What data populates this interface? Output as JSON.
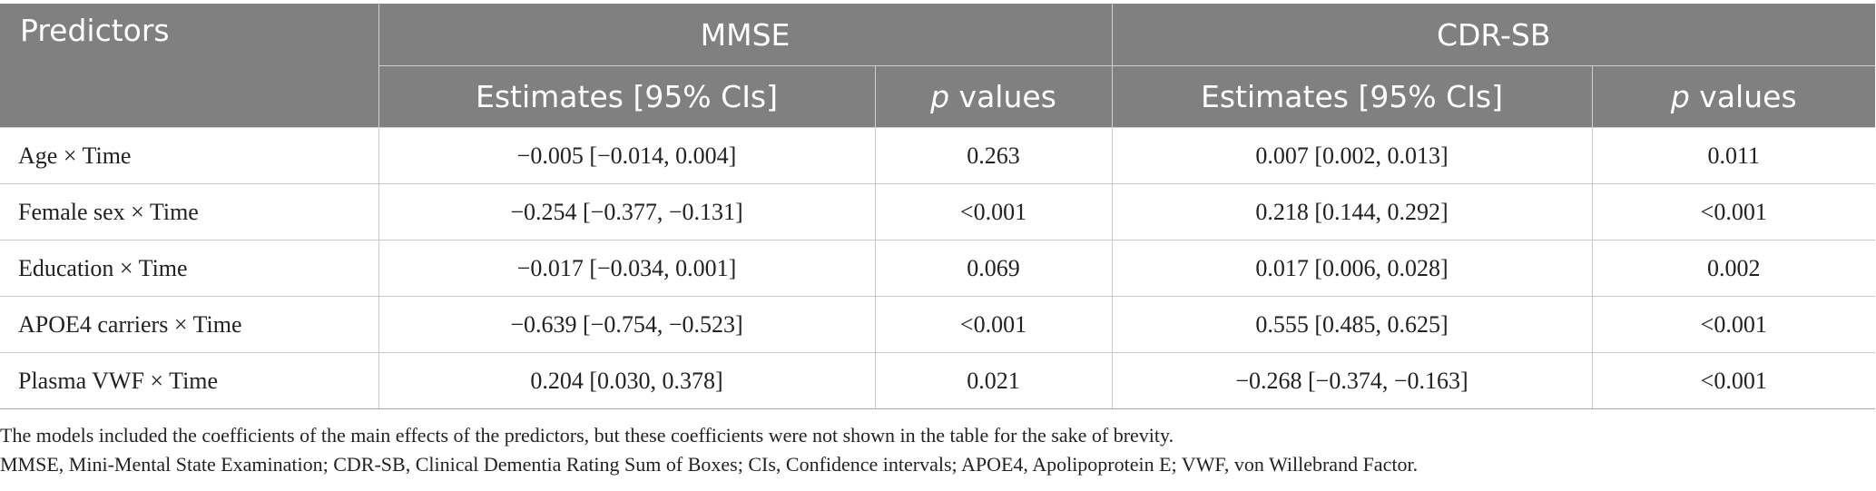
{
  "header": {
    "predictors": "Predictors",
    "group1": "MMSE",
    "group2": "CDR-SB",
    "estimates": "Estimates [95% CIs]",
    "p_italic": "p",
    "p_rest": " values"
  },
  "rows": [
    {
      "predictor": "Age × Time",
      "mmse_est": "−0.005 [−0.014, 0.004]",
      "mmse_p": "0.263",
      "cdr_est": "0.007 [0.002, 0.013]",
      "cdr_p": "0.011"
    },
    {
      "predictor": "Female sex × Time",
      "mmse_est": "−0.254 [−0.377, −0.131]",
      "mmse_p": "<0.001",
      "cdr_est": "0.218 [0.144, 0.292]",
      "cdr_p": "<0.001"
    },
    {
      "predictor": "Education × Time",
      "mmse_est": "−0.017 [−0.034, 0.001]",
      "mmse_p": "0.069",
      "cdr_est": "0.017 [0.006, 0.028]",
      "cdr_p": "0.002"
    },
    {
      "predictor": "APOE4 carriers × Time",
      "mmse_est": "−0.639 [−0.754, −0.523]",
      "mmse_p": "<0.001",
      "cdr_est": "0.555 [0.485, 0.625]",
      "cdr_p": "<0.001"
    },
    {
      "predictor": "Plasma VWF × Time",
      "mmse_est": "0.204 [0.030, 0.378]",
      "mmse_p": "0.021",
      "cdr_est": "−0.268 [−0.374, −0.163]",
      "cdr_p": "<0.001"
    }
  ],
  "notes": {
    "line1": "The models included the coefficients of the main effects of the predictors, but these coefficients were not shown in the table for the sake of brevity.",
    "line2": "MMSE, Mini-Mental State Examination; CDR-SB, Clinical Dementia Rating Sum of Boxes; CIs, Confidence intervals; APOE4, Apolipoprotein E; VWF, von Willebrand Factor."
  }
}
